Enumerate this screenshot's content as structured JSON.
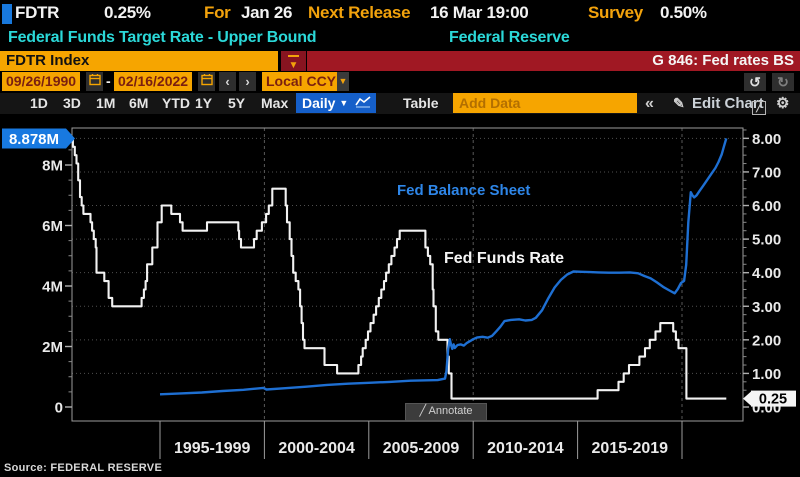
{
  "header": {
    "ticker": "FDTR",
    "value": "0.25%",
    "for_label": "For",
    "for_value": "Jan 26",
    "next_release_label": "Next Release",
    "next_release_value": "16 Mar 19:00",
    "survey_label": "Survey",
    "survey_value": "0.50%",
    "description": "Federal Funds Target Rate - Upper Bound",
    "source_name": "Federal Reserve"
  },
  "security_bar": {
    "ticker_input": "FDTR Index",
    "chart_code": "G 846: Fed rates BS"
  },
  "date_bar": {
    "start_date": "09/26/1990",
    "separator": "-",
    "end_date": "02/16/2022",
    "currency": "Local CCY"
  },
  "toolbar": {
    "ranges": [
      "1D",
      "3D",
      "1M",
      "6M",
      "YTD",
      "1Y",
      "5Y",
      "Max"
    ],
    "period": "Daily",
    "table_label": "Table",
    "add_data_placeholder": "Add Data",
    "edit_chart_label": "Edit Chart"
  },
  "icons": {
    "dropdown_arrow": "▼",
    "prev_arrow": "‹",
    "next_arrow": "›",
    "undo": "↺",
    "redo": "↻",
    "collapse": "«",
    "pencil": "✎",
    "gear": "⚙",
    "annotate_slash": "╱"
  },
  "chart": {
    "balance_sheet_label": "Fed Balance Sheet",
    "funds_rate_label": "Fed Funds Rate",
    "annotate_label": "Annotate",
    "source": "Source: FEDERAL RESERVE"
  },
  "chart_data": {
    "type": "line",
    "title": "G 846: Fed rates BS",
    "x_domain_years": [
      1990.73,
      2022.92
    ],
    "x_tick_years": [
      1995,
      2000,
      2005,
      2010,
      2015,
      2020
    ],
    "x_gridline_years": [
      2000,
      2010,
      2020
    ],
    "x_period_labels": [
      "1995-1999",
      "2000-2004",
      "2005-2009",
      "2010-2014",
      "2015-2019"
    ],
    "left_axis": {
      "range": [
        0,
        9.2
      ],
      "units": "millions",
      "minor_step": 0.5,
      "ticks": [
        {
          "v": 8,
          "label": "8M"
        },
        {
          "v": 6,
          "label": "6M"
        },
        {
          "v": 4,
          "label": "4M"
        },
        {
          "v": 2,
          "label": "2M"
        },
        {
          "v": 0,
          "label": "0"
        }
      ],
      "last_value": 8.878,
      "last_value_label": "8.878M"
    },
    "right_axis": {
      "range": [
        0,
        8.3
      ],
      "units": "percent",
      "minor_step": 0.25,
      "ticks": [
        {
          "v": 8,
          "label": "8.00"
        },
        {
          "v": 7,
          "label": "7.00"
        },
        {
          "v": 6,
          "label": "6.00"
        },
        {
          "v": 5,
          "label": "5.00"
        },
        {
          "v": 4,
          "label": "4.00"
        },
        {
          "v": 3,
          "label": "3.00"
        },
        {
          "v": 2,
          "label": "2.00"
        },
        {
          "v": 1,
          "label": "1.00"
        },
        {
          "v": 0,
          "label": "0.00"
        }
      ],
      "last_value": 0.25,
      "last_value_label": "0.25"
    },
    "series": [
      {
        "name": "Fed Funds Rate",
        "axis": "right",
        "type": "step",
        "color": "#f2f2f2",
        "data": [
          [
            1990.75,
            8.0
          ],
          [
            1990.83,
            7.75
          ],
          [
            1990.92,
            7.5
          ],
          [
            1991.0,
            7.25
          ],
          [
            1991.08,
            6.75
          ],
          [
            1991.17,
            6.25
          ],
          [
            1991.25,
            6.0
          ],
          [
            1991.33,
            5.75
          ],
          [
            1991.67,
            5.5
          ],
          [
            1991.75,
            5.25
          ],
          [
            1991.83,
            5.0
          ],
          [
            1991.92,
            4.75
          ],
          [
            1991.96,
            4.0
          ],
          [
            1992.33,
            3.75
          ],
          [
            1992.54,
            3.25
          ],
          [
            1992.71,
            3.0
          ],
          [
            1994.12,
            3.25
          ],
          [
            1994.23,
            3.5
          ],
          [
            1994.31,
            3.75
          ],
          [
            1994.38,
            4.25
          ],
          [
            1994.63,
            4.75
          ],
          [
            1994.88,
            5.5
          ],
          [
            1995.08,
            6.0
          ],
          [
            1995.54,
            5.75
          ],
          [
            1995.96,
            5.5
          ],
          [
            1996.08,
            5.25
          ],
          [
            1997.25,
            5.5
          ],
          [
            1998.75,
            5.25
          ],
          [
            1998.79,
            5.0
          ],
          [
            1998.88,
            4.75
          ],
          [
            1999.5,
            5.0
          ],
          [
            1999.63,
            5.25
          ],
          [
            1999.88,
            5.5
          ],
          [
            2000.08,
            5.75
          ],
          [
            2000.21,
            6.0
          ],
          [
            2000.38,
            6.5
          ],
          [
            2001.02,
            6.0
          ],
          [
            2001.08,
            5.5
          ],
          [
            2001.21,
            5.0
          ],
          [
            2001.3,
            4.5
          ],
          [
            2001.38,
            4.0
          ],
          [
            2001.5,
            3.75
          ],
          [
            2001.63,
            3.5
          ],
          [
            2001.71,
            3.0
          ],
          [
            2001.78,
            2.5
          ],
          [
            2001.85,
            2.0
          ],
          [
            2001.92,
            1.75
          ],
          [
            2002.88,
            1.25
          ],
          [
            2003.48,
            1.0
          ],
          [
            2004.5,
            1.25
          ],
          [
            2004.63,
            1.5
          ],
          [
            2004.71,
            1.75
          ],
          [
            2004.85,
            2.0
          ],
          [
            2004.96,
            2.25
          ],
          [
            2005.08,
            2.5
          ],
          [
            2005.23,
            2.75
          ],
          [
            2005.35,
            3.0
          ],
          [
            2005.48,
            3.25
          ],
          [
            2005.6,
            3.5
          ],
          [
            2005.73,
            3.75
          ],
          [
            2005.83,
            4.0
          ],
          [
            2005.96,
            4.25
          ],
          [
            2006.08,
            4.5
          ],
          [
            2006.23,
            4.75
          ],
          [
            2006.35,
            5.0
          ],
          [
            2006.48,
            5.25
          ],
          [
            2007.71,
            4.75
          ],
          [
            2007.83,
            4.5
          ],
          [
            2007.94,
            4.25
          ],
          [
            2008.06,
            3.5
          ],
          [
            2008.1,
            3.0
          ],
          [
            2008.21,
            2.25
          ],
          [
            2008.33,
            2.0
          ],
          [
            2008.77,
            1.5
          ],
          [
            2008.83,
            1.0
          ],
          [
            2008.96,
            0.25
          ],
          [
            2015.96,
            0.5
          ],
          [
            2016.96,
            0.75
          ],
          [
            2017.21,
            1.0
          ],
          [
            2017.46,
            1.25
          ],
          [
            2017.96,
            1.5
          ],
          [
            2018.23,
            1.75
          ],
          [
            2018.46,
            2.0
          ],
          [
            2018.73,
            2.25
          ],
          [
            2018.96,
            2.5
          ],
          [
            2019.58,
            2.25
          ],
          [
            2019.71,
            2.0
          ],
          [
            2019.83,
            1.75
          ],
          [
            2020.21,
            0.25
          ],
          [
            2022.12,
            0.25
          ]
        ]
      },
      {
        "name": "Fed Balance Sheet",
        "axis": "left",
        "type": "line",
        "color": "#1e6fd2",
        "data": [
          [
            1995.0,
            0.42
          ],
          [
            1996,
            0.45
          ],
          [
            1997,
            0.48
          ],
          [
            1998,
            0.53
          ],
          [
            1999,
            0.57
          ],
          [
            1999.95,
            0.63
          ],
          [
            2000.1,
            0.58
          ],
          [
            2001,
            0.62
          ],
          [
            2002,
            0.67
          ],
          [
            2003,
            0.73
          ],
          [
            2004,
            0.77
          ],
          [
            2005,
            0.8
          ],
          [
            2006,
            0.83
          ],
          [
            2007,
            0.87
          ],
          [
            2008.3,
            0.89
          ],
          [
            2008.65,
            0.94
          ],
          [
            2008.72,
            1.2
          ],
          [
            2008.8,
            1.9
          ],
          [
            2008.88,
            2.24
          ],
          [
            2008.94,
            2.05
          ],
          [
            2009.0,
            1.92
          ],
          [
            2009.06,
            2.07
          ],
          [
            2009.12,
            1.95
          ],
          [
            2009.25,
            2.05
          ],
          [
            2009.4,
            2.07
          ],
          [
            2009.55,
            2.03
          ],
          [
            2009.7,
            2.12
          ],
          [
            2009.85,
            2.18
          ],
          [
            2010.0,
            2.24
          ],
          [
            2010.2,
            2.3
          ],
          [
            2010.45,
            2.32
          ],
          [
            2010.7,
            2.29
          ],
          [
            2010.9,
            2.35
          ],
          [
            2011.1,
            2.5
          ],
          [
            2011.3,
            2.65
          ],
          [
            2011.5,
            2.84
          ],
          [
            2011.8,
            2.88
          ],
          [
            2012.2,
            2.9
          ],
          [
            2012.5,
            2.86
          ],
          [
            2012.8,
            2.88
          ],
          [
            2013.0,
            2.95
          ],
          [
            2013.3,
            3.2
          ],
          [
            2013.6,
            3.6
          ],
          [
            2013.9,
            3.95
          ],
          [
            2014.2,
            4.2
          ],
          [
            2014.5,
            4.38
          ],
          [
            2014.8,
            4.48
          ],
          [
            2015.2,
            4.47
          ],
          [
            2015.6,
            4.46
          ],
          [
            2016.0,
            4.45
          ],
          [
            2016.5,
            4.44
          ],
          [
            2017.0,
            4.44
          ],
          [
            2017.5,
            4.45
          ],
          [
            2017.9,
            4.42
          ],
          [
            2018.2,
            4.33
          ],
          [
            2018.5,
            4.25
          ],
          [
            2018.8,
            4.12
          ],
          [
            2019.1,
            3.97
          ],
          [
            2019.4,
            3.85
          ],
          [
            2019.65,
            3.76
          ],
          [
            2019.8,
            3.9
          ],
          [
            2019.95,
            4.1
          ],
          [
            2020.1,
            4.17
          ],
          [
            2020.2,
            4.7
          ],
          [
            2020.3,
            6.1
          ],
          [
            2020.42,
            7.1
          ],
          [
            2020.5,
            7.0
          ],
          [
            2020.58,
            6.93
          ],
          [
            2020.7,
            7.0
          ],
          [
            2020.85,
            7.15
          ],
          [
            2021.0,
            7.3
          ],
          [
            2021.2,
            7.5
          ],
          [
            2021.4,
            7.7
          ],
          [
            2021.6,
            7.9
          ],
          [
            2021.75,
            8.1
          ],
          [
            2021.9,
            8.35
          ],
          [
            2022.0,
            8.6
          ],
          [
            2022.12,
            8.878
          ]
        ]
      }
    ]
  }
}
